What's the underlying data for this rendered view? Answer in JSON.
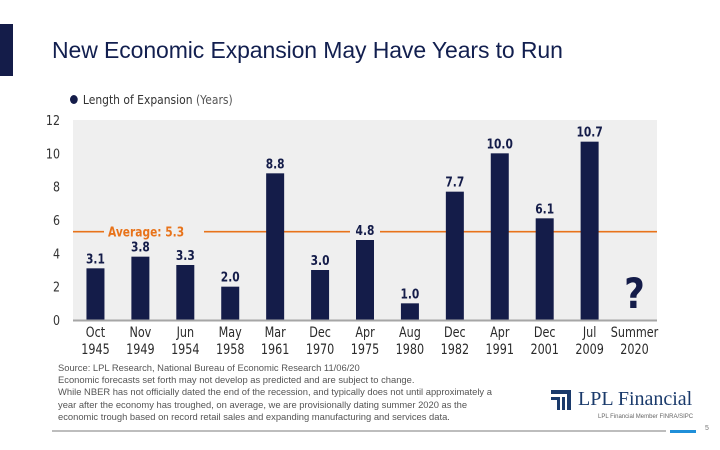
{
  "page": {
    "title": "New Economic Expansion May Have Years to Run",
    "page_number": "5"
  },
  "legend": {
    "label": "Length of Expansion",
    "unit": "(Years)"
  },
  "colors": {
    "bar": "#141c49",
    "average_line": "#e8731a",
    "plot_bg": "#efefef",
    "axis": "#a6a6a6",
    "title": "#121f4f",
    "accent_blue": "#1f8fd9"
  },
  "chart_data": {
    "type": "bar",
    "title": "New Economic Expansion May Have Years to Run",
    "xlabel": "",
    "ylabel": "",
    "ylim": [
      0,
      12
    ],
    "yticks": [
      0,
      2,
      4,
      6,
      8,
      10,
      12
    ],
    "grid": false,
    "legend": {
      "entries": [
        "Length of Expansion (Years)"
      ],
      "position": "top-left"
    },
    "categories": [
      [
        "Oct",
        "1945"
      ],
      [
        "Nov",
        "1949"
      ],
      [
        "Jun",
        "1954"
      ],
      [
        "May",
        "1958"
      ],
      [
        "Mar",
        "1961"
      ],
      [
        "Dec",
        "1970"
      ],
      [
        "Apr",
        "1975"
      ],
      [
        "Aug",
        "1980"
      ],
      [
        "Dec",
        "1982"
      ],
      [
        "Apr",
        "1991"
      ],
      [
        "Dec",
        "2001"
      ],
      [
        "Jul",
        "2009"
      ],
      [
        "Summer",
        "2020"
      ]
    ],
    "series": [
      {
        "name": "Length of Expansion (Years)",
        "values": [
          3.1,
          3.8,
          3.3,
          2.0,
          8.8,
          3.0,
          4.8,
          1.0,
          7.7,
          10.0,
          6.1,
          10.7,
          null
        ],
        "labels": [
          "3.1",
          "3.8",
          "3.3",
          "2.0",
          "8.8",
          "3.0",
          "4.8",
          "1.0",
          "7.7",
          "10.0",
          "6.1",
          "10.7",
          "?"
        ]
      }
    ],
    "annotations": [
      {
        "type": "hline",
        "value": 5.3,
        "label": "Average: 5.3"
      }
    ]
  },
  "footnotes": [
    "Source: LPL Research, National Bureau of Economic Research   11/06/20",
    "Economic forecasts set forth may not develop as predicted and are subject to change.",
    "While NBER has not officially dated the end of the recession, and typically does not until approximately a",
    "year after the economy has troughed, on average, we are provisionally dating summer 2020 as the",
    "economic trough based on record retail sales and expanding manufacturing and services data."
  ],
  "branding": {
    "logo_name": "LPL Financial",
    "member_text": "LPL Financial  Member FINRA/SIPC"
  }
}
